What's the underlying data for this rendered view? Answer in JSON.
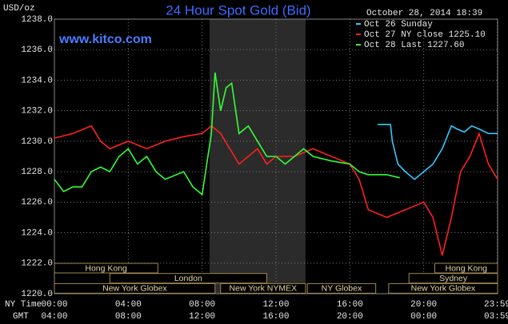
{
  "chart_data": {
    "type": "line",
    "title": "24 Hour Spot Gold (Bid)",
    "y_label": "USD/oz",
    "timestamp": "October 28, 2014 18:39",
    "watermark": "www.kitco.com",
    "x_label": "NY Time",
    "x2_label": "GMT",
    "xlim": [
      0,
      24
    ],
    "ylim": [
      1220,
      1238
    ],
    "xticks": [
      {
        "value": 0,
        "label": "00:00"
      },
      {
        "value": 4,
        "label": "04:00"
      },
      {
        "value": 8,
        "label": "08:00"
      },
      {
        "value": 12,
        "label": "12:00"
      },
      {
        "value": 16,
        "label": "16:00"
      },
      {
        "value": 20,
        "label": "20:00"
      },
      {
        "value": 23.98,
        "label": "23:59"
      }
    ],
    "x2ticks": [
      "04:00",
      "08:00",
      "12:00",
      "16:00",
      "20:00",
      "00:00",
      "03:59"
    ],
    "yticks": [
      {
        "value": 1220,
        "label": "1220.0"
      },
      {
        "value": 1222,
        "label": "1222.0"
      },
      {
        "value": 1224,
        "label": "1224.0"
      },
      {
        "value": 1226,
        "label": "1226.0"
      },
      {
        "value": 1228,
        "label": "1228.0"
      },
      {
        "value": 1230,
        "label": "1230.0"
      },
      {
        "value": 1232,
        "label": "1232.0"
      },
      {
        "value": 1234,
        "label": "1234.0"
      },
      {
        "value": 1236,
        "label": "1236.0"
      },
      {
        "value": 1238,
        "label": "1238.0"
      }
    ],
    "grid": true,
    "highlight": [
      8.4,
      13.6
    ],
    "highlight_color": "#2b2b2b",
    "session_rows": [
      [
        {
          "label": "Hong Kong",
          "start": 0,
          "end": 5.6
        },
        {
          "label": "Hong Kong",
          "start": 20.6,
          "end": 24
        }
      ],
      [
        {
          "label": "London",
          "start": 3,
          "end": 11.5
        },
        {
          "label": "Sydney",
          "start": 19.2,
          "end": 24
        }
      ],
      [
        {
          "label": "New York Globex",
          "start": 0,
          "end": 8.7
        },
        {
          "label": "New York NYMEX",
          "start": 9,
          "end": 13.6
        },
        {
          "label": "NY Globex",
          "start": 13.7,
          "end": 17.4
        },
        {
          "label": "New York Globex",
          "start": 18.1,
          "end": 24
        }
      ]
    ],
    "series": [
      {
        "name": "Oct 26 Sunday",
        "color": "#33c8ff",
        "x": [
          17.5,
          18.2,
          18.3,
          18.6,
          19,
          19.5,
          20,
          20.5,
          21,
          21.5,
          21.8,
          22.2,
          22.6,
          23,
          23.5,
          24
        ],
        "values": [
          1231.1,
          1231.1,
          1230,
          1228.5,
          1228,
          1227.5,
          1228,
          1228.5,
          1229.5,
          1231,
          1230.8,
          1230.6,
          1231,
          1230.8,
          1230.5,
          1230.5
        ]
      },
      {
        "name": "Oct 27 NY close 1225.10",
        "color": "#ff2020",
        "x": [
          0,
          1,
          2,
          2.5,
          3,
          4,
          5,
          6,
          7,
          8,
          8.5,
          9,
          9.5,
          10,
          11,
          11.5,
          12,
          13,
          14,
          15,
          16,
          16.5,
          17,
          18,
          19,
          20,
          20.5,
          21,
          21.5,
          22,
          22.5,
          23,
          23.5,
          24
        ],
        "values": [
          1230.2,
          1230.5,
          1231,
          1230,
          1229.5,
          1230,
          1229.5,
          1230,
          1230.3,
          1230.5,
          1231,
          1230.5,
          1229.5,
          1228.5,
          1229.5,
          1228.5,
          1229,
          1229,
          1229.5,
          1229,
          1228.5,
          1227.5,
          1225.5,
          1225,
          1225.5,
          1226,
          1225,
          1222.5,
          1225,
          1228,
          1229,
          1230.5,
          1228.5,
          1227.5
        ]
      },
      {
        "name": "Oct 28 Last 1227.60",
        "color": "#33ff33",
        "x": [
          0,
          0.5,
          1,
          1.5,
          2,
          2.5,
          3,
          3.5,
          4,
          4.5,
          5,
          5.5,
          6,
          7,
          7.5,
          8,
          8.5,
          8.7,
          9,
          9.3,
          9.6,
          10,
          10.5,
          11,
          11.5,
          12,
          12.5,
          13,
          13.5,
          14,
          15,
          16,
          16.5,
          17,
          18,
          18.7
        ],
        "values": [
          1227.5,
          1226.7,
          1227,
          1227,
          1228,
          1228.3,
          1228,
          1229,
          1229.5,
          1228.5,
          1229,
          1228,
          1227.5,
          1228,
          1227,
          1226.5,
          1230.5,
          1234.5,
          1232,
          1233.5,
          1233.8,
          1230.5,
          1231,
          1230,
          1229,
          1229,
          1228.5,
          1229,
          1229.5,
          1229,
          1228.7,
          1228.5,
          1228,
          1227.8,
          1227.8,
          1227.6
        ]
      }
    ]
  }
}
